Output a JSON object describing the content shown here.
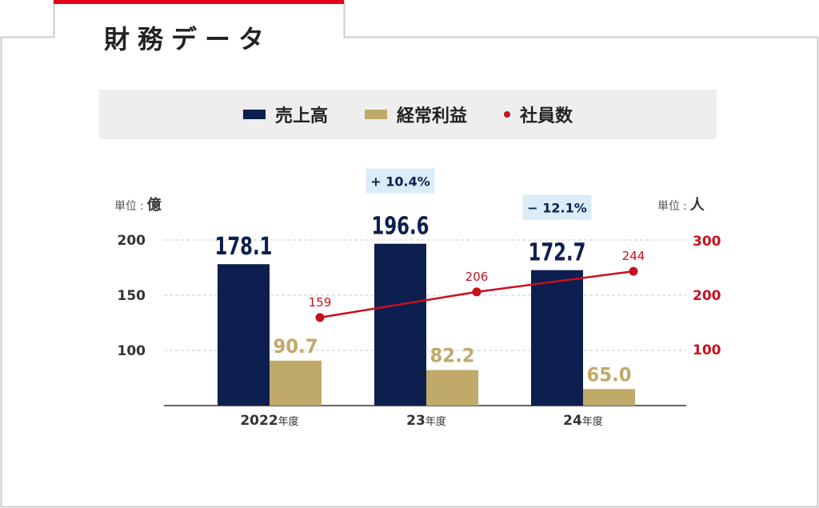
{
  "header": {
    "title": "財務データ"
  },
  "legend": [
    {
      "label": "売上高",
      "color": "#0d1f4f",
      "kind": "bar"
    },
    {
      "label": "経常利益",
      "color": "#bfaa6a",
      "kind": "bar"
    },
    {
      "label": "社員数",
      "color": "#c8101e",
      "kind": "dot"
    }
  ],
  "units": {
    "left_prefix": "単位",
    "left_colon": ":",
    "left_unit": "億",
    "right_prefix": "単位",
    "right_colon": ":",
    "right_unit": "人"
  },
  "colors": {
    "sales": "#0d1f4f",
    "profit": "#bfaa6a",
    "employees": "#c8101e",
    "change_badge_bg": "#d9ecf7",
    "frame_accent": "#e0001b"
  },
  "chart_data": {
    "type": "bar",
    "categories": [
      "2022年度",
      "23年度",
      "24年度"
    ],
    "category_labels": [
      {
        "num": "2022",
        "suffix": "年度"
      },
      {
        "num": "23",
        "suffix": "年度"
      },
      {
        "num": "24",
        "suffix": "年度"
      }
    ],
    "series": [
      {
        "name": "売上高",
        "values": [
          178.1,
          196.6,
          172.7
        ],
        "labels": [
          "178.1",
          "196.6",
          "172.7"
        ],
        "axis": "left"
      },
      {
        "name": "経常利益",
        "values": [
          90.7,
          82.2,
          65.0
        ],
        "labels": [
          "90.7",
          "82.2",
          "65.0"
        ],
        "axis": "left"
      },
      {
        "name": "社員数",
        "type": "line",
        "values": [
          159,
          206,
          244
        ],
        "labels": [
          "159",
          "206",
          "244"
        ],
        "axis": "right"
      }
    ],
    "left_axis": {
      "ticks": [
        100,
        150,
        200
      ],
      "unit": "億"
    },
    "right_axis": {
      "ticks": [
        100,
        200,
        300
      ],
      "unit": "人"
    },
    "annotations": [
      {
        "category": "23年度",
        "text": "+ 10.4%"
      },
      {
        "category": "24年度",
        "text": "− 12.1%"
      }
    ],
    "grid": "dashed"
  }
}
